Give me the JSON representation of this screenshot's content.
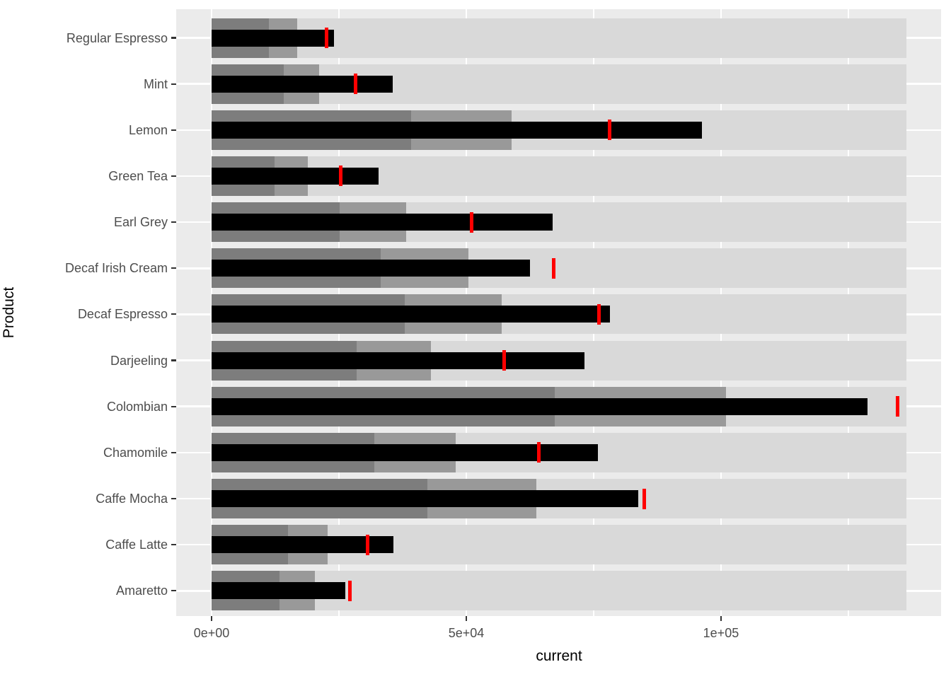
{
  "figure": {
    "kind": "bullet-chart",
    "colors": {
      "panel_background": "#EBEBEB",
      "gridline": "#FFFFFF",
      "qualitative_range_1": "#7D7D7D",
      "qualitative_range_2": "#999999",
      "qualitative_range_3": "#D9D9D9",
      "current_bar": "#000000",
      "target_marker": "#FF0000",
      "axis_text": "#4D4D4D",
      "axis_tick": "#333333",
      "axis_title": "#000000"
    }
  },
  "chart_data": {
    "type": "bar",
    "subtype": "bullet",
    "orientation": "horizontal",
    "title": "",
    "xlabel": "current",
    "ylabel": "Product",
    "xlim": [
      0,
      136400
    ],
    "grid": true,
    "legend_position": "none",
    "x_ticks": {
      "values": [
        0,
        50000,
        100000
      ],
      "labels": [
        "0e+00",
        "5e+04",
        "1e+05"
      ]
    },
    "x_minor_ticks": [
      25000,
      75000,
      125000
    ],
    "categories": [
      "Regular Espresso",
      "Mint",
      "Lemon",
      "Green Tea",
      "Earl Grey",
      "Decaf Irish Cream",
      "Decaf Espresso",
      "Darjeeling",
      "Colombian",
      "Chamomile",
      "Caffe Mocha",
      "Caffe Latte",
      "Amaretto"
    ],
    "series": [
      {
        "name": "qualitative_range_1",
        "role": "background-band",
        "color": "#7D7D7D",
        "values": [
          11250,
          14200,
          39200,
          12400,
          25100,
          33200,
          37900,
          28500,
          67400,
          31900,
          42400,
          15000,
          13300
        ]
      },
      {
        "name": "qualitative_range_2",
        "role": "background-band",
        "color": "#999999",
        "values": [
          16800,
          21100,
          58900,
          18900,
          38200,
          50400,
          56900,
          43100,
          101000,
          47900,
          63800,
          22800,
          20300
        ]
      },
      {
        "name": "qualitative_range_3",
        "role": "background-band",
        "color": "#D9D9D9",
        "values": [
          136400,
          136400,
          136400,
          136400,
          136400,
          136400,
          136400,
          136400,
          136400,
          136400,
          136400,
          136400,
          136400
        ]
      },
      {
        "name": "current",
        "role": "measure-bar",
        "color": "#000000",
        "values": [
          24000,
          35600,
          96300,
          32800,
          67000,
          62500,
          78200,
          73200,
          128800,
          75800,
          83800,
          35700,
          26200
        ]
      },
      {
        "name": "target",
        "role": "target-marker",
        "color": "#FF0000",
        "values": [
          22600,
          28300,
          78200,
          25300,
          51000,
          67200,
          76000,
          57500,
          134700,
          64300,
          84900,
          30600,
          27200
        ]
      }
    ]
  }
}
